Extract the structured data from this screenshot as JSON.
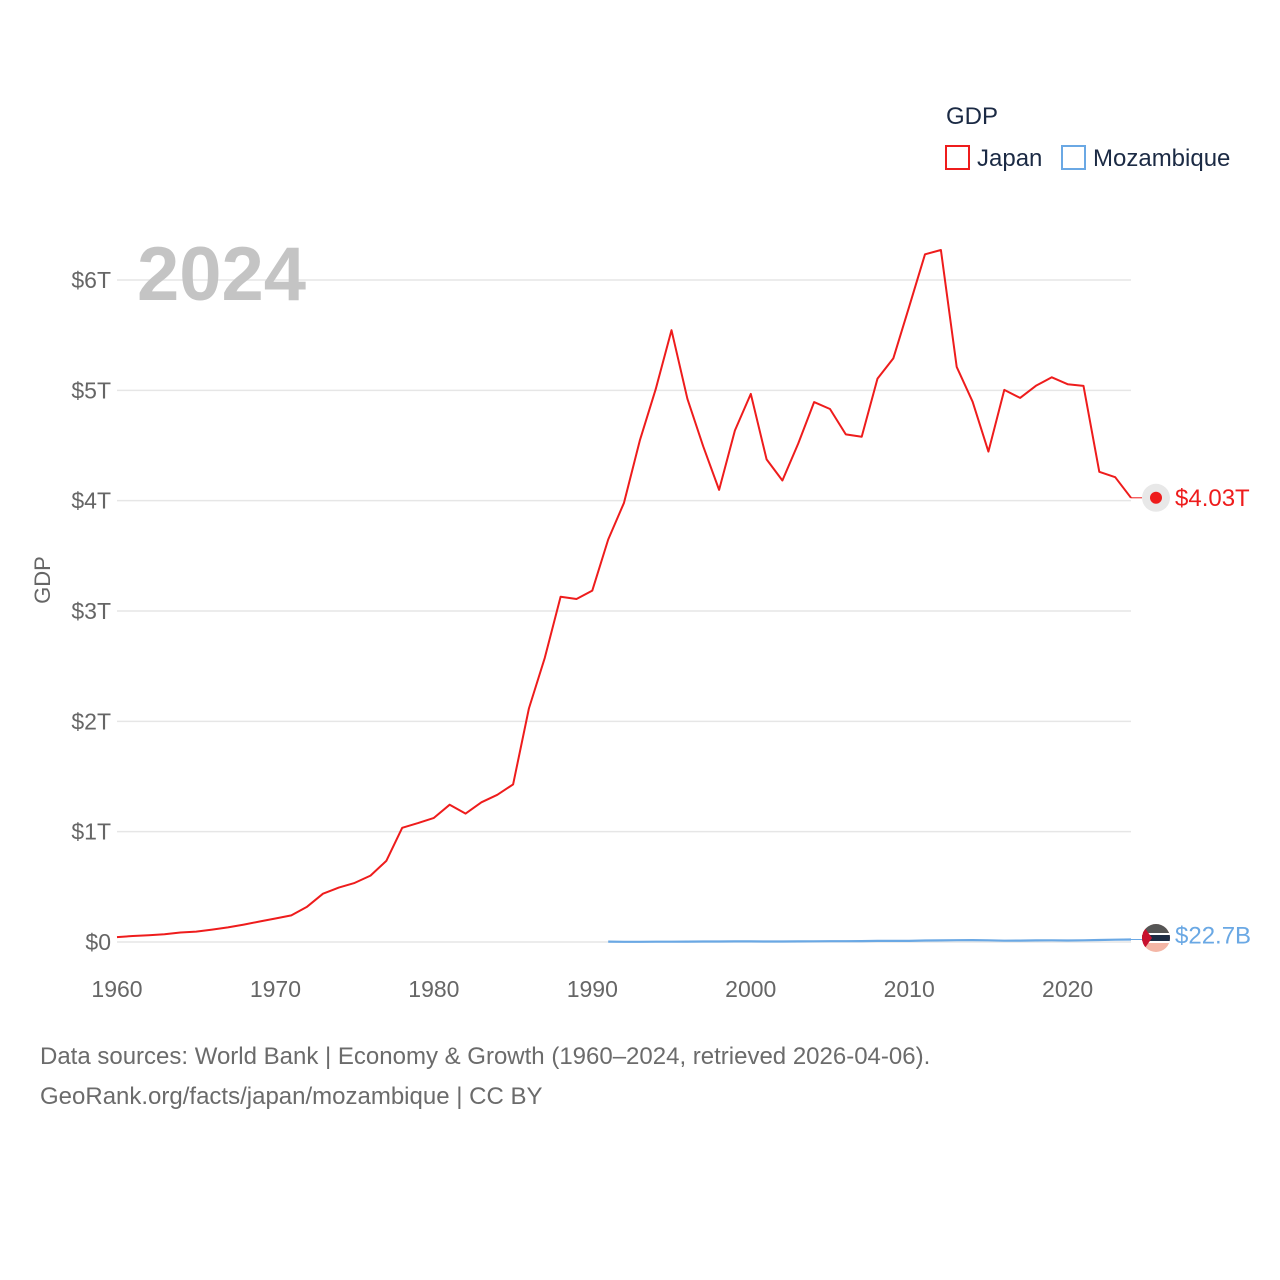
{
  "chart_data": {
    "type": "line",
    "title": "",
    "year_label": "2024",
    "legend_title": "GDP",
    "legend_placement": "top-right",
    "ylabel": "GDP",
    "xlabel": "",
    "xlim": [
      1960,
      2024
    ],
    "ylim": [
      0,
      6.3
    ],
    "y_unit": "trillion USD",
    "x_ticks": [
      1960,
      1970,
      1980,
      1990,
      2000,
      2010,
      2020
    ],
    "x_tick_labels": [
      "1960",
      "1970",
      "1980",
      "1990",
      "2000",
      "2010",
      "2020"
    ],
    "y_ticks": [
      0,
      1,
      2,
      3,
      4,
      5,
      6
    ],
    "y_tick_labels": [
      "$0",
      "$1T",
      "$2T",
      "$3T",
      "$4T",
      "$5T",
      "$6T"
    ],
    "grid": true,
    "series": [
      {
        "name": "Japan",
        "color": "#ee1c1c",
        "end_label": "$4.03T",
        "x": [
          1960,
          1961,
          1962,
          1963,
          1964,
          1965,
          1966,
          1967,
          1968,
          1969,
          1970,
          1971,
          1972,
          1973,
          1974,
          1975,
          1976,
          1977,
          1978,
          1979,
          1980,
          1981,
          1982,
          1983,
          1984,
          1985,
          1986,
          1987,
          1988,
          1989,
          1990,
          1991,
          1992,
          1993,
          1994,
          1995,
          1996,
          1997,
          1998,
          1999,
          2000,
          2001,
          2002,
          2003,
          2004,
          2005,
          2006,
          2007,
          2008,
          2009,
          2010,
          2011,
          2012,
          2013,
          2014,
          2015,
          2016,
          2017,
          2018,
          2019,
          2020,
          2021,
          2022,
          2023,
          2024
        ],
        "values": [
          0.044,
          0.054,
          0.062,
          0.071,
          0.086,
          0.094,
          0.112,
          0.132,
          0.158,
          0.186,
          0.213,
          0.241,
          0.32,
          0.438,
          0.493,
          0.536,
          0.602,
          0.735,
          1.035,
          1.078,
          1.125,
          1.244,
          1.164,
          1.266,
          1.334,
          1.428,
          2.116,
          2.576,
          3.129,
          3.109,
          3.185,
          3.648,
          3.981,
          4.544,
          5.01,
          5.545,
          4.923,
          4.493,
          4.098,
          4.636,
          4.968,
          4.374,
          4.183,
          4.519,
          4.893,
          4.831,
          4.601,
          4.579,
          5.106,
          5.289,
          5.759,
          6.233,
          6.272,
          5.212,
          4.897,
          4.445,
          5.004,
          4.931,
          5.041,
          5.118,
          5.056,
          5.04,
          4.262,
          4.213,
          4.026
        ]
      },
      {
        "name": "Mozambique",
        "color": "#6aa8e4",
        "end_label": "$22.7B",
        "x": [
          1991,
          1992,
          1993,
          1994,
          1995,
          1996,
          1997,
          1998,
          1999,
          2000,
          2001,
          2002,
          2003,
          2004,
          2005,
          2006,
          2007,
          2008,
          2009,
          2010,
          2011,
          2012,
          2013,
          2014,
          2015,
          2016,
          2017,
          2018,
          2019,
          2020,
          2021,
          2022,
          2023,
          2024
        ],
        "values": [
          0.0035,
          0.002,
          0.0022,
          0.0023,
          0.0025,
          0.0036,
          0.0043,
          0.0049,
          0.0053,
          0.005,
          0.0047,
          0.0046,
          0.0052,
          0.0061,
          0.0071,
          0.0076,
          0.0085,
          0.01,
          0.0099,
          0.01,
          0.0132,
          0.0147,
          0.016,
          0.0169,
          0.0157,
          0.0115,
          0.0131,
          0.0142,
          0.0153,
          0.014,
          0.0158,
          0.0179,
          0.0207,
          0.0227
        ]
      }
    ]
  },
  "footer": {
    "line1": "Data sources: World Bank | Economy & Growth (1960–2024, retrieved 2026-04-06).",
    "line2": "GeoRank.org/facts/japan/mozambique | CC BY"
  }
}
